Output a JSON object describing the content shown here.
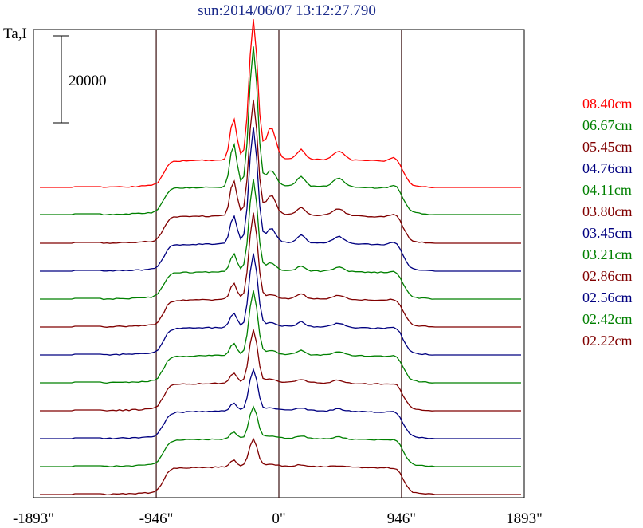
{
  "chart_data": {
    "type": "line",
    "title": "sun:2014/06/07 13:12:27.790",
    "ylabel": "Ta,I",
    "scale_bar_label": "20000",
    "x_tick_labels": [
      "-1893\"",
      "-946\"",
      "0\"",
      "946\"",
      "1893\""
    ],
    "x_ticks": [
      -1893,
      -946,
      0,
      946,
      1893
    ],
    "xlim": [
      -1893,
      1893
    ],
    "vertical_markers": [
      -946,
      0,
      946
    ],
    "series": [
      {
        "name": "08.40cm",
        "color": "#ff0000",
        "offset": 235,
        "peak": 175,
        "sub": 52,
        "hump": 40,
        "small": 12,
        "gap": 0
      },
      {
        "name": "06.67cm",
        "color": "#008000",
        "offset": 269,
        "peak": 175,
        "sub": 55,
        "hump": 20,
        "small": 12,
        "gap": 0
      },
      {
        "name": "05.45cm",
        "color": "#800000",
        "offset": 305,
        "peak": 145,
        "sub": 45,
        "hump": 25,
        "small": 10,
        "gap": 1
      },
      {
        "name": "04.76cm",
        "color": "#000080",
        "offset": 340,
        "peak": 145,
        "sub": 35,
        "hump": 18,
        "small": 10,
        "gap": 0
      },
      {
        "name": "04.11cm",
        "color": "#008000",
        "offset": 375,
        "peak": 115,
        "sub": 22,
        "hump": 10,
        "small": 6,
        "gap": 0
      },
      {
        "name": "03.80cm",
        "color": "#800000",
        "offset": 410,
        "peak": 108,
        "sub": 20,
        "hump": 5,
        "small": 6,
        "gap": 0
      },
      {
        "name": "03.45cm",
        "color": "#000080",
        "offset": 445,
        "peak": 92,
        "sub": 18,
        "hump": 5,
        "small": 6,
        "gap": 0
      },
      {
        "name": "03.21cm",
        "color": "#008000",
        "offset": 480,
        "peak": 80,
        "sub": 15,
        "hump": 5,
        "small": 5,
        "gap": 0
      },
      {
        "name": "02.86cm",
        "color": "#800000",
        "offset": 515,
        "peak": 66,
        "sub": 13,
        "hump": 4,
        "small": 4,
        "gap": 0
      },
      {
        "name": "02.56cm",
        "color": "#000080",
        "offset": 550,
        "peak": 52,
        "sub": 10,
        "hump": 3,
        "small": 3,
        "gap": 0
      },
      {
        "name": "02.42cm",
        "color": "#008000",
        "offset": 585,
        "peak": 40,
        "sub": 9,
        "hump": 3,
        "small": 3,
        "gap": 0
      },
      {
        "name": "02.22cm",
        "color": "#800000",
        "offset": 620,
        "peak": 34,
        "sub": 8,
        "hump": 2,
        "small": 2,
        "gap": 0
      }
    ]
  }
}
